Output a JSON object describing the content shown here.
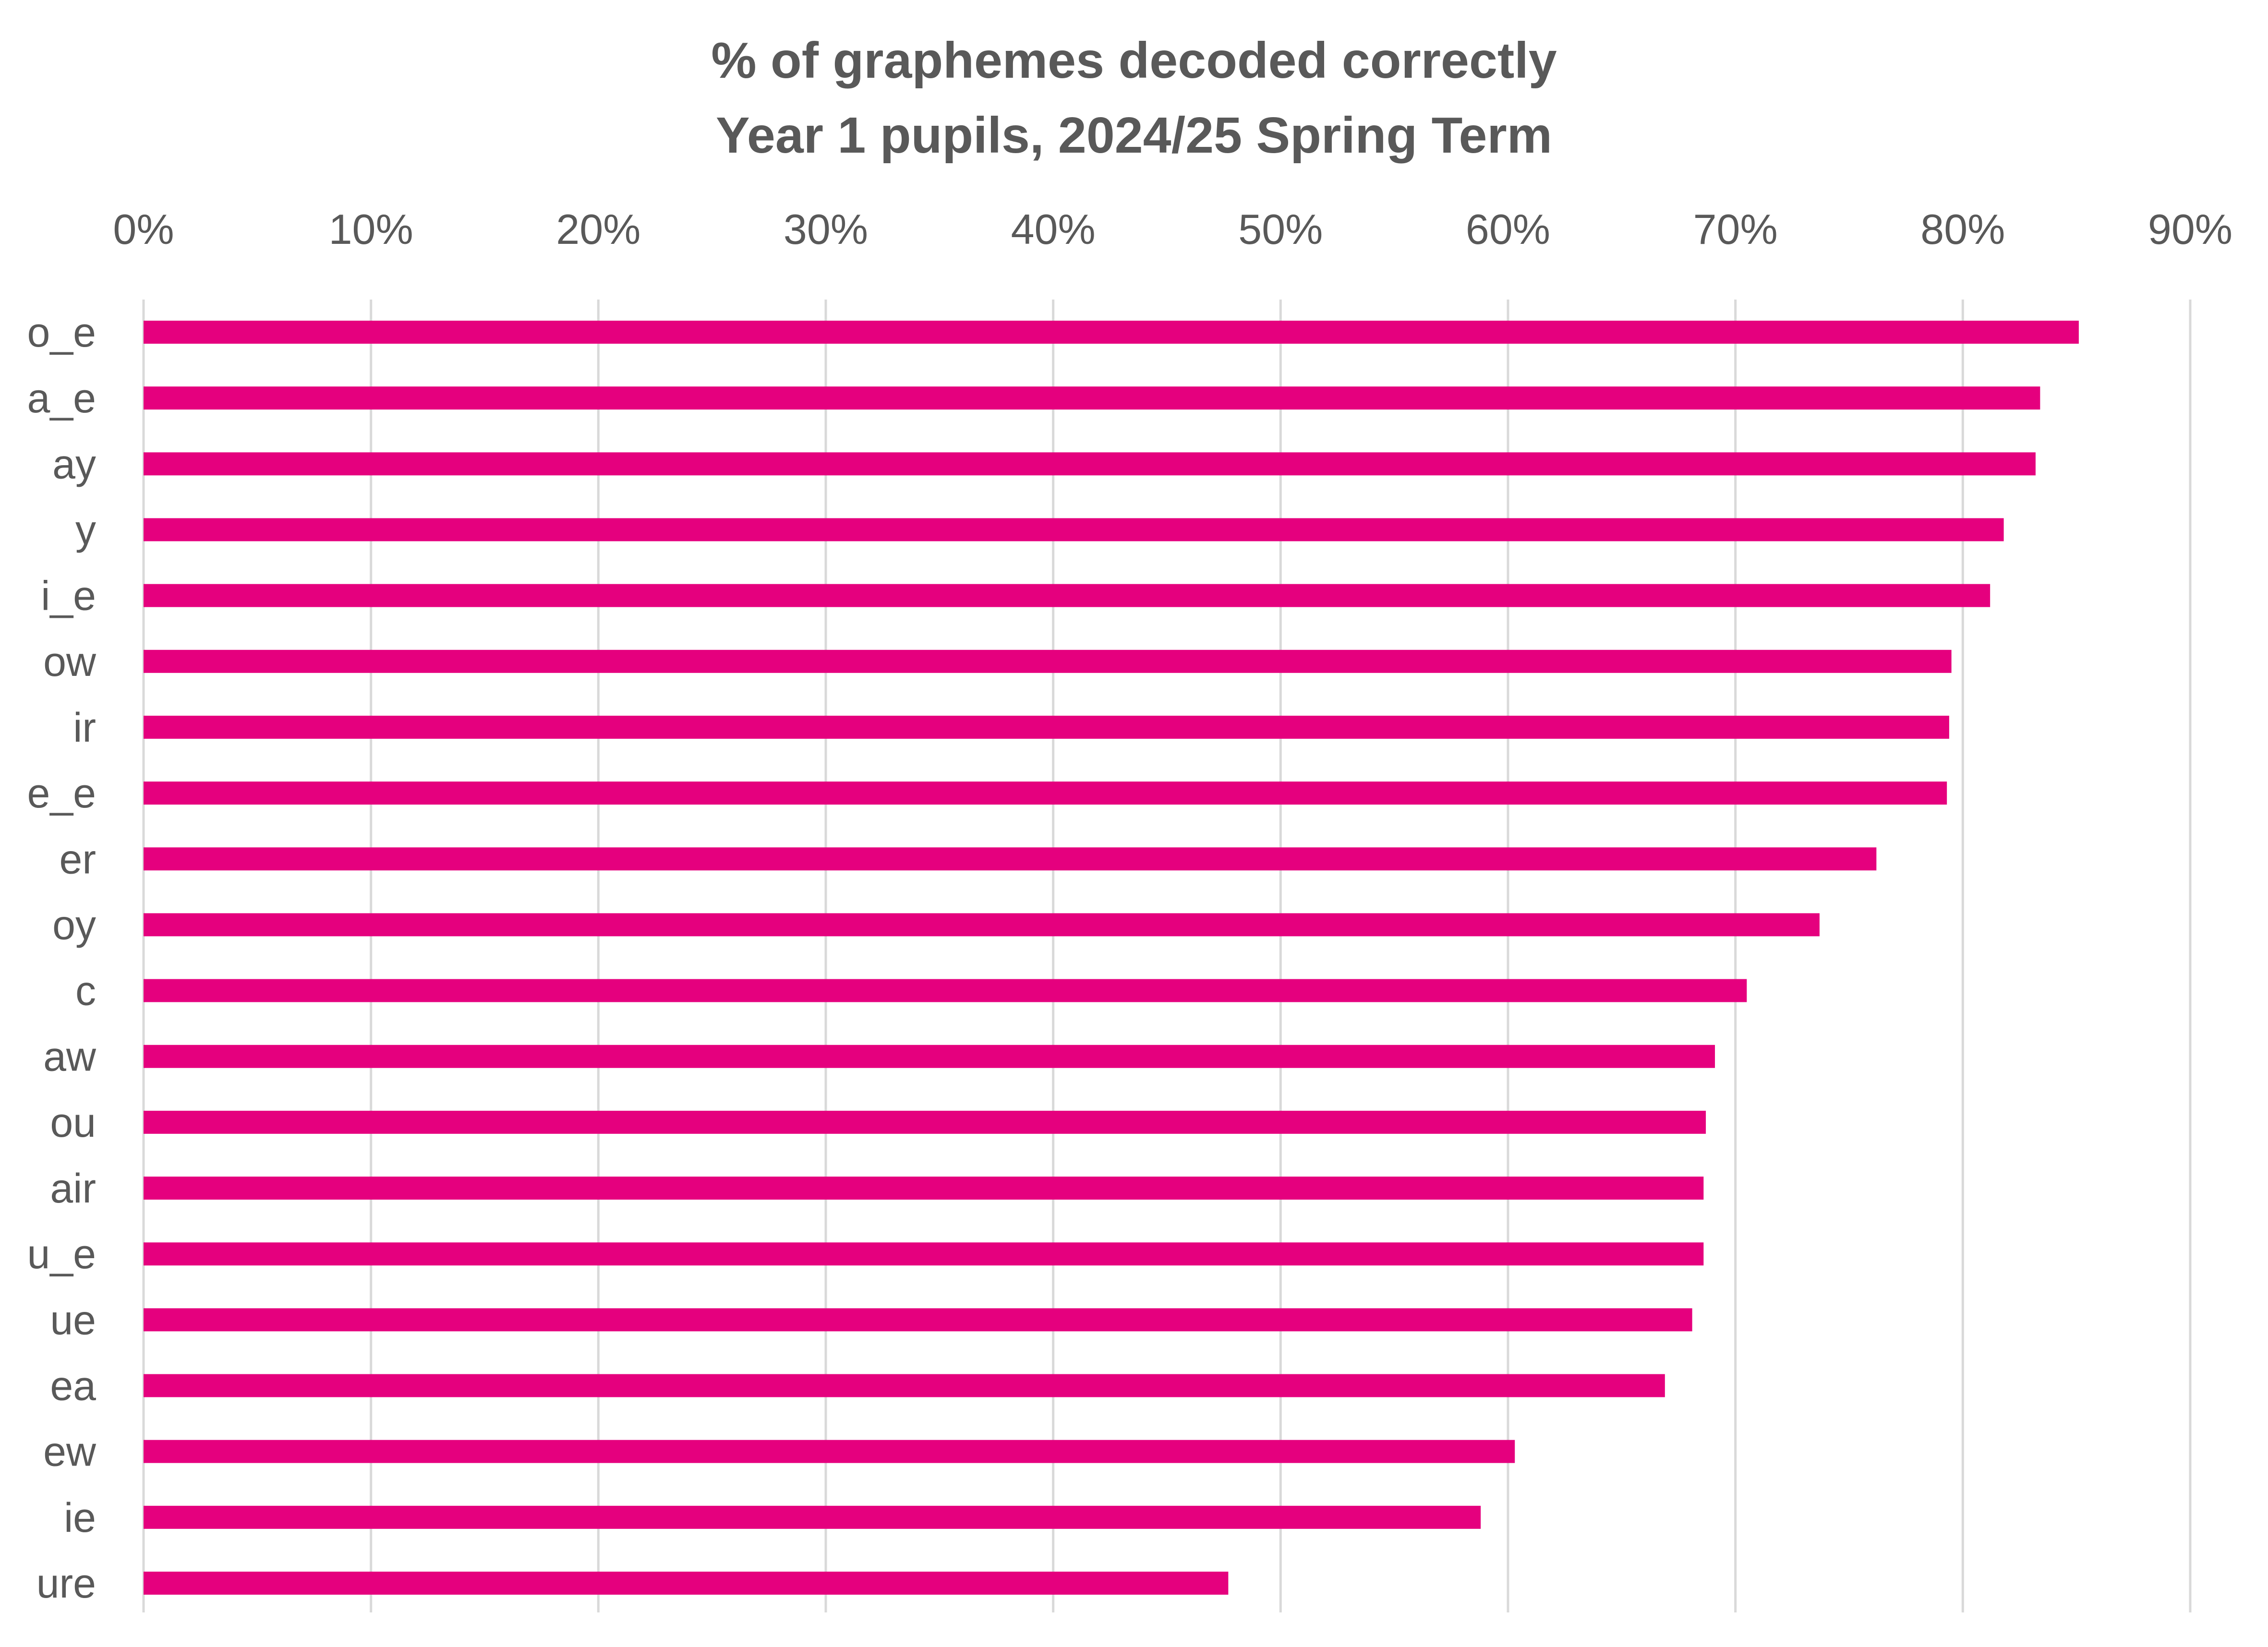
{
  "chart_data": {
    "type": "bar",
    "orientation": "horizontal",
    "title": "% of graphemes decoded correctly",
    "subtitle": "Year 1 pupils, 2024/25 Spring Term",
    "categories": [
      "o_e",
      "a_e",
      "ay",
      "y",
      "i_e",
      "ow",
      "ir",
      "e_e",
      "er",
      "oy",
      "c",
      "aw",
      "ou",
      "air",
      "u_e",
      "ue",
      "ea",
      "ew",
      "ie",
      "ure"
    ],
    "values": [
      85.1,
      83.4,
      83.2,
      81.8,
      81.2,
      79.5,
      79.4,
      79.3,
      76.2,
      73.7,
      70.5,
      69.1,
      68.7,
      68.6,
      68.6,
      68.1,
      66.9,
      60.3,
      58.8,
      47.7
    ],
    "unit": "%",
    "xlim": [
      0,
      90
    ],
    "x_ticks": [
      0,
      10,
      20,
      30,
      40,
      50,
      60,
      70,
      80,
      90
    ],
    "x_tick_labels": [
      "0%",
      "10%",
      "20%",
      "30%",
      "40%",
      "50%",
      "60%",
      "70%",
      "80%",
      "90%"
    ],
    "x_axis_position": "top",
    "grid": true,
    "legend": "none",
    "xlabel": "",
    "ylabel": "",
    "colors": {
      "bar": "#E5007E",
      "gridline": "#D9D9D9",
      "text": "#595959"
    }
  }
}
